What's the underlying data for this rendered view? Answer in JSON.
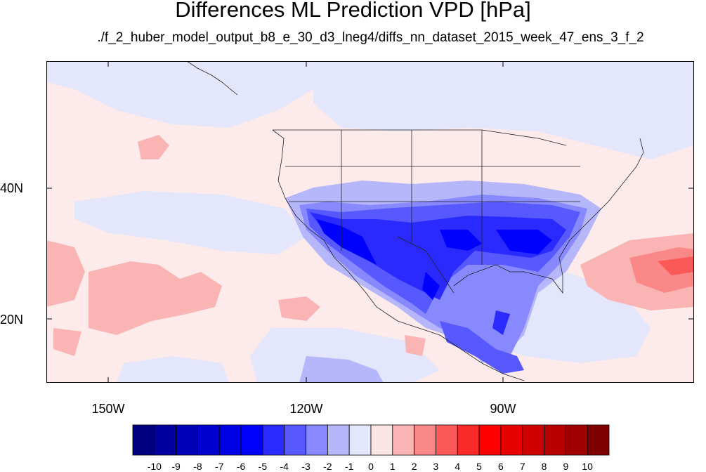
{
  "title": "Differences ML Prediction VPD [hPa]",
  "subtitle": "./f_2_huber_model_output_b8_e_30_d3_lneg4/diffs_nn_dataset_2015_week_47_ens_3_f_2",
  "map": {
    "lon_range": [
      -159,
      -61
    ],
    "lat_range": [
      11,
      59
    ],
    "lat_tick_labels": [
      "40N",
      "20N"
    ],
    "lon_tick_labels": [
      "150W",
      "120W",
      "90W"
    ]
  },
  "colorbar": {
    "labels": [
      "-10",
      "-9",
      "-8",
      "-7",
      "-6",
      "-5",
      "-4",
      "-3",
      "-2",
      "-1",
      "0",
      "1",
      "2",
      "3",
      "4",
      "5",
      "6",
      "7",
      "8",
      "9",
      "10"
    ],
    "colors": [
      "#00007f",
      "#00009f",
      "#0000b7",
      "#0000cf",
      "#0000e7",
      "#0000ff",
      "#2a2aff",
      "#5858ff",
      "#8888ff",
      "#b6b6fb",
      "#e4e6fb",
      "#fbe4e4",
      "#fbb4b4",
      "#fb8888",
      "#fb5858",
      "#fb2a2a",
      "#ff0000",
      "#e70000",
      "#cf0000",
      "#b70000",
      "#9f0000",
      "#7f0000"
    ]
  }
}
